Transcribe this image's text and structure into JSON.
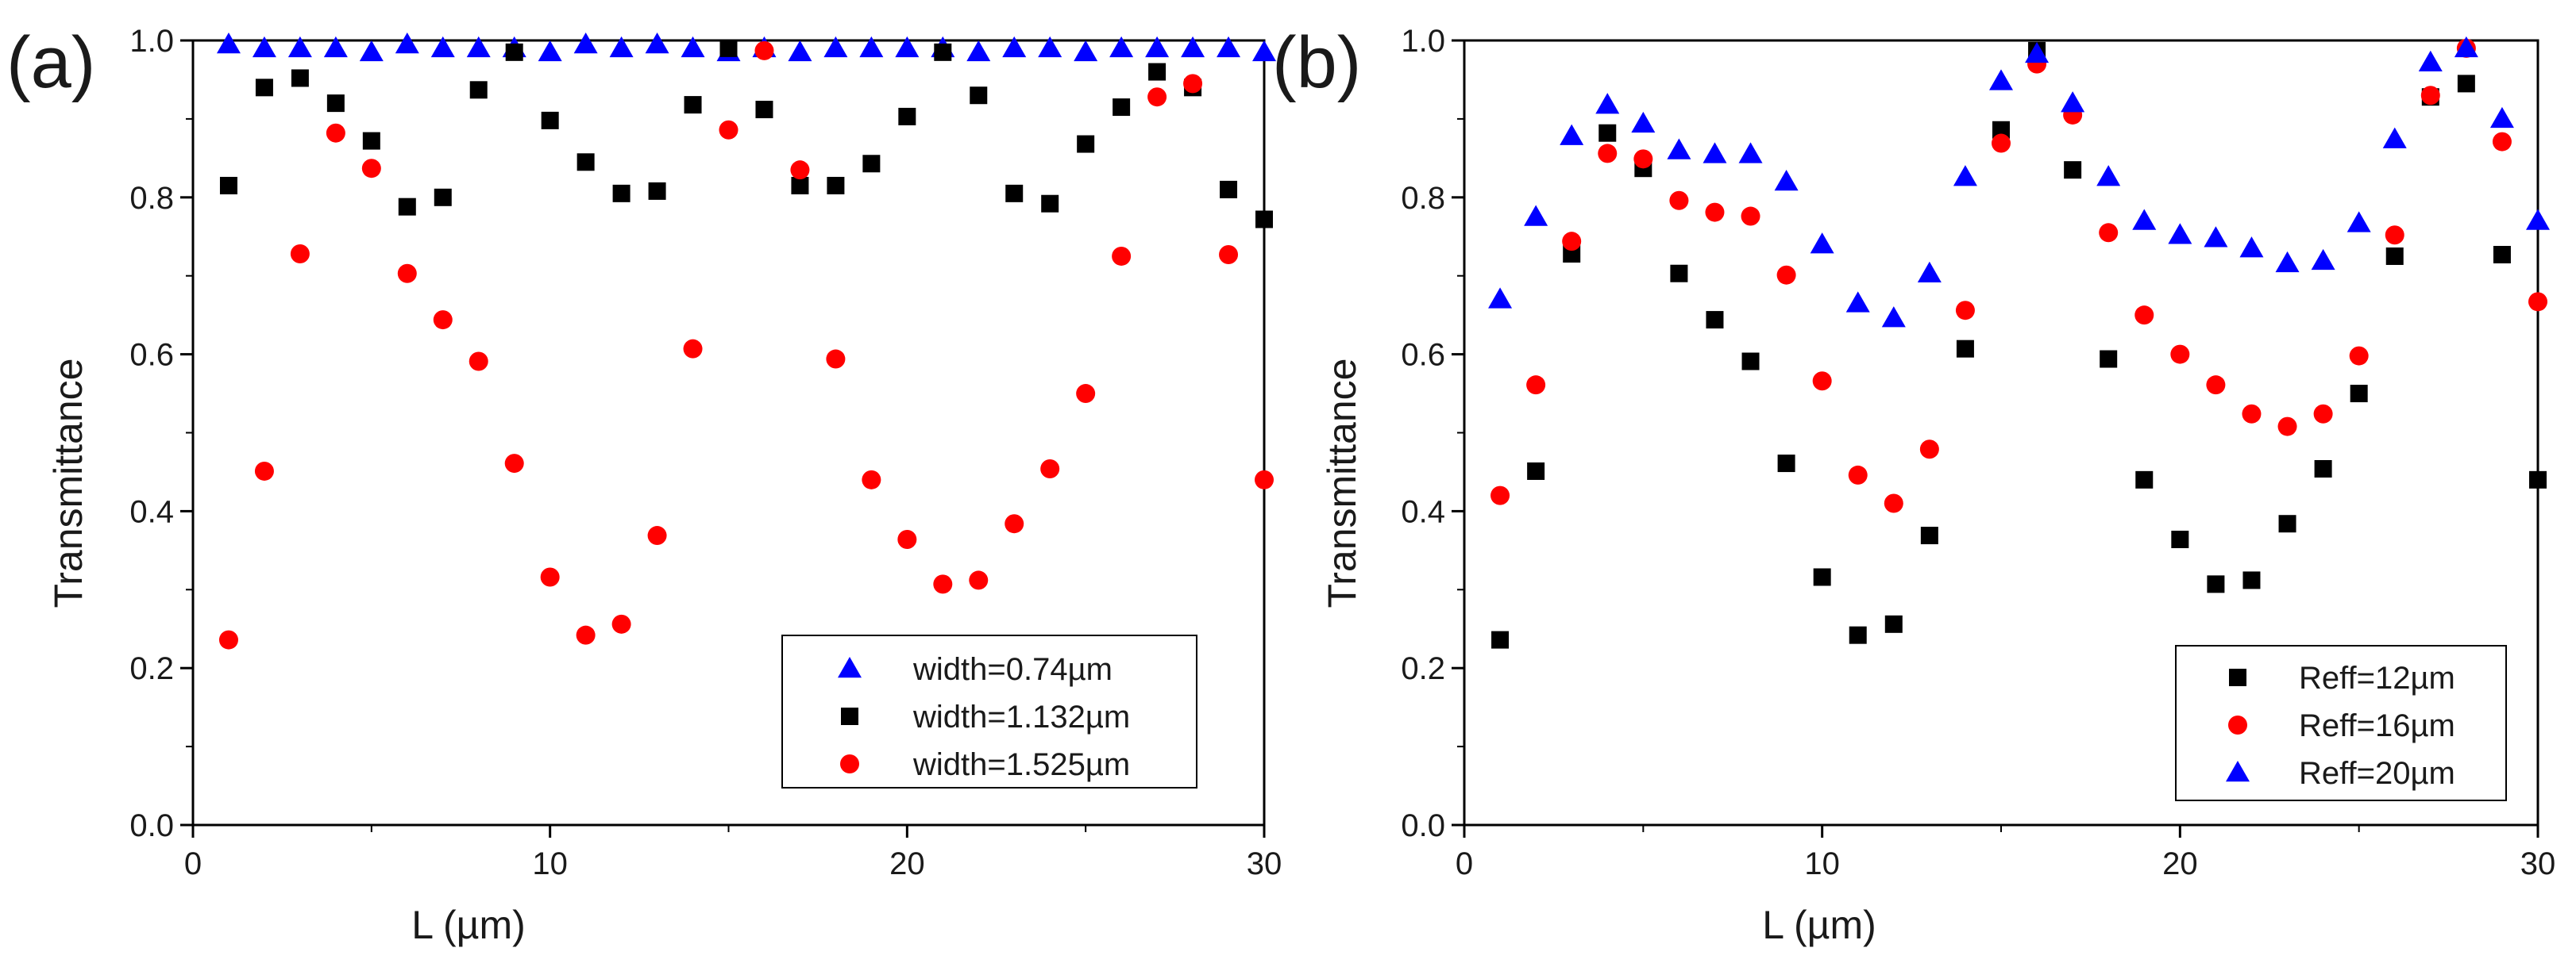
{
  "chart_data": [
    {
      "type": "scatter",
      "panel_label": "(a)",
      "xlabel": "L (µm)",
      "ylabel": "Transmittance",
      "xlim": [
        0,
        30
      ],
      "ylim": [
        0,
        1.0
      ],
      "x_ticks": [
        "0",
        "10",
        "20",
        "30"
      ],
      "y_ticks": [
        "0.0",
        "0.2",
        "0.4",
        "0.6",
        "0.8",
        "1.0"
      ],
      "legend_position": "bottom-right",
      "series": [
        {
          "name": "width=0.74µm",
          "marker": "triangle",
          "color": "#0000ff",
          "x": [
            1,
            2,
            3,
            4,
            5,
            6,
            7,
            8,
            9,
            10,
            11,
            12,
            13,
            14,
            15,
            16,
            17,
            18,
            19,
            20,
            21,
            22,
            23,
            24,
            25,
            26,
            27,
            28,
            29,
            30
          ],
          "y": [
            0.995,
            0.99,
            0.99,
            0.99,
            0.985,
            0.995,
            0.99,
            0.99,
            0.99,
            0.985,
            0.995,
            0.99,
            0.995,
            0.99,
            0.985,
            0.99,
            0.985,
            0.99,
            0.99,
            0.99,
            0.99,
            0.985,
            0.99,
            0.99,
            0.985,
            0.99,
            0.99,
            0.99,
            0.99,
            0.985
          ]
        },
        {
          "name": "width=1.132µm",
          "marker": "square",
          "color": "#000000",
          "x": [
            1,
            2,
            3,
            4,
            5,
            6,
            7,
            8,
            9,
            10,
            11,
            12,
            13,
            14,
            15,
            16,
            17,
            18,
            19,
            20,
            21,
            22,
            23,
            24,
            25,
            26,
            27,
            28,
            29,
            30
          ],
          "y": [
            0.815,
            0.94,
            0.952,
            0.92,
            0.872,
            0.788,
            0.8,
            0.937,
            0.985,
            0.898,
            0.845,
            0.805,
            0.808,
            0.918,
            0.99,
            0.912,
            0.815,
            0.815,
            0.843,
            0.903,
            0.985,
            0.93,
            0.805,
            0.792,
            0.868,
            0.915,
            0.96,
            0.94,
            0.81,
            0.772
          ]
        },
        {
          "name": "width=1.525µm",
          "marker": "circle",
          "color": "#ff0000",
          "x": [
            1,
            2,
            3,
            4,
            5,
            6,
            7,
            8,
            9,
            10,
            11,
            12,
            13,
            14,
            15,
            16,
            17,
            18,
            19,
            20,
            21,
            22,
            23,
            24,
            25,
            26,
            27,
            28,
            29,
            30
          ],
          "y": [
            0.236,
            0.451,
            0.728,
            0.882,
            0.837,
            0.703,
            0.644,
            0.591,
            0.461,
            0.316,
            0.242,
            0.256,
            0.369,
            0.607,
            0.886,
            0.987,
            0.835,
            0.594,
            0.44,
            0.364,
            0.307,
            0.312,
            0.384,
            0.454,
            0.55,
            0.725,
            0.928,
            0.945,
            0.727,
            0.44
          ]
        }
      ]
    },
    {
      "type": "scatter",
      "panel_label": "(b)",
      "xlabel": "L (µm)",
      "ylabel": "Transmittance",
      "xlim": [
        0,
        30
      ],
      "ylim": [
        0,
        1.0
      ],
      "x_ticks": [
        "0",
        "10",
        "20",
        "30"
      ],
      "y_ticks": [
        "0.0",
        "0.2",
        "0.4",
        "0.6",
        "0.8",
        "1.0"
      ],
      "legend_position": "bottom-right",
      "series": [
        {
          "name": "Reff=12µm",
          "marker": "square",
          "color": "#000000",
          "x": [
            1,
            2,
            3,
            4,
            5,
            6,
            7,
            8,
            9,
            10,
            11,
            12,
            13,
            14,
            15,
            16,
            17,
            18,
            19,
            20,
            21,
            22,
            23,
            24,
            25,
            26,
            27,
            28,
            29,
            30
          ],
          "y": [
            0.236,
            0.451,
            0.728,
            0.882,
            0.837,
            0.703,
            0.644,
            0.591,
            0.461,
            0.316,
            0.242,
            0.256,
            0.369,
            0.607,
            0.886,
            0.987,
            0.835,
            0.594,
            0.44,
            0.364,
            0.307,
            0.312,
            0.384,
            0.454,
            0.55,
            0.725,
            0.928,
            0.945,
            0.727,
            0.44
          ]
        },
        {
          "name": "Reff=16µm",
          "marker": "circle",
          "color": "#ff0000",
          "x": [
            1,
            2,
            3,
            4,
            5,
            6,
            7,
            8,
            9,
            10,
            11,
            12,
            13,
            14,
            15,
            16,
            17,
            18,
            19,
            20,
            21,
            22,
            23,
            24,
            25,
            26,
            27,
            28,
            29,
            30
          ],
          "y": [
            0.42,
            0.561,
            0.744,
            0.856,
            0.849,
            0.796,
            0.781,
            0.776,
            0.701,
            0.566,
            0.446,
            0.41,
            0.479,
            0.656,
            0.869,
            0.97,
            0.905,
            0.755,
            0.65,
            0.6,
            0.561,
            0.524,
            0.508,
            0.524,
            0.598,
            0.752,
            0.93,
            0.99,
            0.871,
            0.667
          ]
        },
        {
          "name": "Reff=20µm",
          "marker": "triangle",
          "color": "#0000ff",
          "x": [
            1,
            2,
            3,
            4,
            5,
            6,
            7,
            8,
            9,
            10,
            11,
            12,
            13,
            14,
            15,
            16,
            17,
            18,
            19,
            20,
            21,
            22,
            23,
            24,
            25,
            26,
            27,
            28,
            29,
            30
          ],
          "y": [
            0.67,
            0.775,
            0.878,
            0.918,
            0.894,
            0.86,
            0.855,
            0.855,
            0.82,
            0.74,
            0.665,
            0.646,
            0.703,
            0.826,
            0.948,
            0.983,
            0.92,
            0.826,
            0.77,
            0.752,
            0.748,
            0.735,
            0.716,
            0.719,
            0.767,
            0.874,
            0.972,
            0.99,
            0.9,
            0.77
          ]
        }
      ]
    }
  ]
}
